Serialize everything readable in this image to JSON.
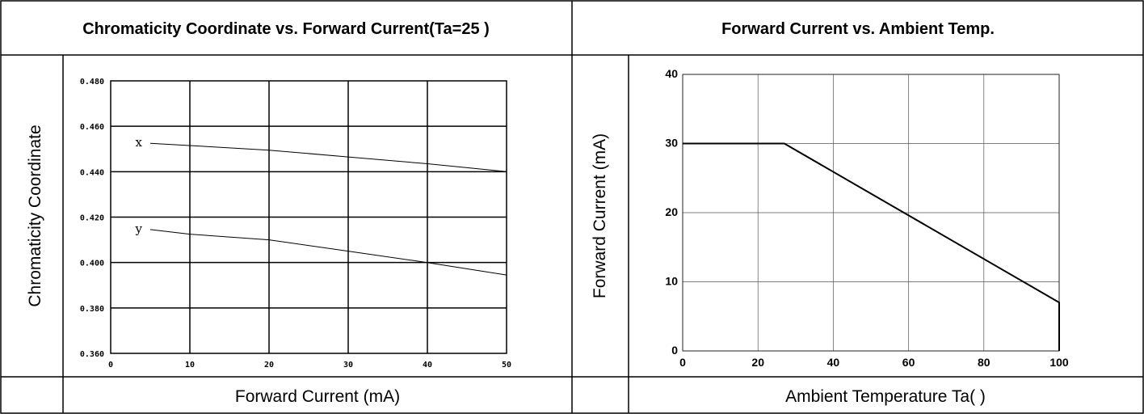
{
  "chart_data": [
    {
      "type": "line",
      "title": "Chromaticity Coordinate vs. Forward Current(Ta=25    )",
      "xlabel": "Forward Current (mA)",
      "ylabel": "Chromaticity Coordinate",
      "xlim": [
        0,
        50
      ],
      "ylim": [
        0.36,
        0.48
      ],
      "x_ticks": [
        0,
        10,
        20,
        30,
        40,
        50
      ],
      "x_tick_labels": [
        "0",
        "10",
        "20",
        "30",
        "40",
        "50"
      ],
      "y_ticks": [
        0.36,
        0.38,
        0.4,
        0.42,
        0.44,
        0.46,
        0.48
      ],
      "y_tick_labels": [
        "0.360",
        "0.380",
        "0.400",
        "0.420",
        "0.440",
        "0.460",
        "0.480"
      ],
      "grid": true,
      "series": [
        {
          "name": "x",
          "x": [
            5,
            10,
            20,
            30,
            40,
            50
          ],
          "y": [
            0.4525,
            0.4515,
            0.4495,
            0.4465,
            0.4435,
            0.44
          ]
        },
        {
          "name": "y",
          "x": [
            5,
            10,
            20,
            30,
            40,
            50
          ],
          "y": [
            0.4145,
            0.4125,
            0.41,
            0.405,
            0.4,
            0.3945
          ]
        }
      ]
    },
    {
      "type": "line",
      "title": "Forward Current vs. Ambient Temp.",
      "xlabel": "Ambient Temperature Ta(    )",
      "ylabel": "Forward Current (mA)",
      "xlim": [
        0,
        100
      ],
      "ylim": [
        0,
        40
      ],
      "x_ticks": [
        0,
        20,
        40,
        60,
        80,
        100
      ],
      "x_tick_labels": [
        "0",
        "20",
        "40",
        "60",
        "80",
        "100"
      ],
      "y_ticks": [
        0,
        10,
        20,
        30,
        40
      ],
      "y_tick_labels": [
        "0",
        "10",
        "20",
        "30",
        "40"
      ],
      "grid": true,
      "series": [
        {
          "x": [
            0,
            27,
            100,
            100
          ],
          "y": [
            30,
            30,
            7,
            0
          ]
        }
      ]
    }
  ]
}
